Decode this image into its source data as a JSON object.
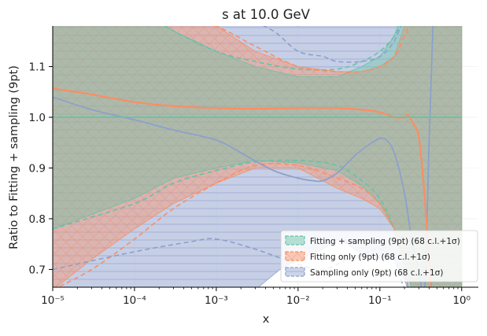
{
  "chart_data": {
    "type": "line",
    "title": "s at 10.0 GeV",
    "xlabel": "x",
    "ylabel": "Ratio to Fitting + sampling (9pt)",
    "xscale": "log",
    "xlim": [
      1e-05,
      1.6
    ],
    "ylim": [
      0.665,
      1.18
    ],
    "x_ticks": [
      {
        "value": 1e-05,
        "label": "10⁻⁵"
      },
      {
        "value": 0.0001,
        "label": "10⁻⁴"
      },
      {
        "value": 0.001,
        "label": "10⁻³"
      },
      {
        "value": 0.01,
        "label": "10⁻²"
      },
      {
        "value": 0.1,
        "label": "10⁻¹"
      },
      {
        "value": 1,
        "label": "10⁰"
      }
    ],
    "y_ticks": [
      {
        "value": 0.7,
        "label": "0.7"
      },
      {
        "value": 0.8,
        "label": "0.8"
      },
      {
        "value": 0.9,
        "label": "0.9"
      },
      {
        "value": 1.0,
        "label": "1.0"
      },
      {
        "value": 1.1,
        "label": "1.1"
      }
    ],
    "legend_position": "lower-right",
    "series": [
      {
        "name": "Fitting + sampling (9pt) (68 c.l.+1σ)",
        "color": "#66c2a5",
        "hatch": "none",
        "central": [
          [
            1e-05,
            1.0
          ],
          [
            1,
            1.0
          ]
        ],
        "band_upper": [
          [
            1e-05,
            1.25
          ],
          [
            0.0001,
            1.22
          ],
          [
            0.0003,
            1.17
          ],
          [
            0.001,
            1.13
          ],
          [
            0.003,
            1.1
          ],
          [
            0.01,
            1.08
          ],
          [
            0.03,
            1.08
          ],
          [
            0.06,
            1.1
          ],
          [
            0.1,
            1.12
          ],
          [
            0.15,
            1.16
          ],
          [
            0.2,
            1.22
          ],
          [
            1,
            1.25
          ]
        ],
        "band_lower": [
          [
            1e-05,
            0.78
          ],
          [
            0.0001,
            0.84
          ],
          [
            0.0003,
            0.88
          ],
          [
            0.001,
            0.9
          ],
          [
            0.003,
            0.915
          ],
          [
            0.01,
            0.91
          ],
          [
            0.03,
            0.895
          ],
          [
            0.06,
            0.865
          ],
          [
            0.1,
            0.83
          ],
          [
            0.15,
            0.78
          ],
          [
            0.2,
            0.72
          ],
          [
            0.3,
            0.6
          ],
          [
            1,
            0.6
          ]
        ],
        "upper_dashed": [
          [
            1e-05,
            1.25
          ],
          [
            0.0001,
            1.21
          ],
          [
            0.0003,
            1.17
          ],
          [
            0.001,
            1.13
          ],
          [
            0.003,
            1.11
          ],
          [
            0.01,
            1.095
          ],
          [
            0.03,
            1.095
          ],
          [
            0.06,
            1.11
          ],
          [
            0.1,
            1.13
          ],
          [
            0.15,
            1.16
          ],
          [
            0.2,
            1.2
          ]
        ],
        "lower_dashed": [
          [
            1e-05,
            0.78
          ],
          [
            0.0001,
            0.83
          ],
          [
            0.0003,
            0.87
          ],
          [
            0.001,
            0.895
          ],
          [
            0.003,
            0.912
          ],
          [
            0.01,
            0.915
          ],
          [
            0.03,
            0.905
          ],
          [
            0.06,
            0.875
          ],
          [
            0.1,
            0.84
          ],
          [
            0.15,
            0.78
          ],
          [
            0.2,
            0.7
          ],
          [
            0.25,
            0.62
          ]
        ]
      },
      {
        "name": "Fitting only (9pt) (68 c.l.+1σ)",
        "color": "#fc8d62",
        "hatch": "cross",
        "central": [
          [
            1e-05,
            1.057
          ],
          [
            3e-05,
            1.045
          ],
          [
            0.0001,
            1.03
          ],
          [
            0.0003,
            1.022
          ],
          [
            0.001,
            1.018
          ],
          [
            0.003,
            1.017
          ],
          [
            0.01,
            1.018
          ],
          [
            0.03,
            1.018
          ],
          [
            0.06,
            1.015
          ],
          [
            0.1,
            1.01
          ],
          [
            0.15,
            1.0
          ],
          [
            0.2,
            1.0
          ],
          [
            0.22,
            1.005
          ],
          [
            0.25,
            0.99
          ],
          [
            0.3,
            0.96
          ],
          [
            0.35,
            0.85
          ],
          [
            0.4,
            0.72
          ],
          [
            0.45,
            0.62
          ]
        ],
        "band_upper": [
          [
            1e-05,
            1.3
          ],
          [
            0.0001,
            1.25
          ],
          [
            0.001,
            1.18
          ],
          [
            0.003,
            1.13
          ],
          [
            0.01,
            1.1
          ],
          [
            0.03,
            1.09
          ],
          [
            0.06,
            1.09
          ],
          [
            0.1,
            1.1
          ],
          [
            0.15,
            1.12
          ],
          [
            0.2,
            1.18
          ],
          [
            1,
            1.3
          ]
        ],
        "band_lower": [
          [
            1e-05,
            0.66
          ],
          [
            3e-05,
            0.72
          ],
          [
            0.0001,
            0.78
          ],
          [
            0.0003,
            0.83
          ],
          [
            0.001,
            0.87
          ],
          [
            0.003,
            0.9
          ],
          [
            0.01,
            0.9
          ],
          [
            0.03,
            0.86
          ],
          [
            0.06,
            0.84
          ],
          [
            0.1,
            0.82
          ],
          [
            0.15,
            0.78
          ],
          [
            0.2,
            0.72
          ],
          [
            0.3,
            0.6
          ],
          [
            1,
            0.6
          ]
        ],
        "upper_dashed": [
          [
            1e-05,
            1.3
          ],
          [
            0.0001,
            1.25
          ],
          [
            0.001,
            1.18
          ],
          [
            0.003,
            1.14
          ],
          [
            0.01,
            1.1
          ],
          [
            0.03,
            1.09
          ],
          [
            0.06,
            1.09
          ],
          [
            0.1,
            1.1
          ],
          [
            0.15,
            1.12
          ],
          [
            0.2,
            1.16
          ],
          [
            0.25,
            1.2
          ]
        ],
        "lower_dashed": [
          [
            1e-05,
            0.66
          ],
          [
            3e-05,
            0.7
          ],
          [
            0.0001,
            0.76
          ],
          [
            0.0003,
            0.82
          ],
          [
            0.001,
            0.87
          ],
          [
            0.003,
            0.905
          ],
          [
            0.01,
            0.905
          ],
          [
            0.03,
            0.88
          ],
          [
            0.06,
            0.86
          ],
          [
            0.1,
            0.83
          ],
          [
            0.15,
            0.78
          ],
          [
            0.2,
            0.7
          ],
          [
            0.25,
            0.62
          ]
        ]
      },
      {
        "name": "Sampling only (9pt) (68 c.l.+1σ)",
        "color": "#8da0cb",
        "hatch": "horizontal",
        "central": [
          [
            1e-05,
            1.04
          ],
          [
            3e-05,
            1.015
          ],
          [
            0.0001,
            0.995
          ],
          [
            0.0003,
            0.975
          ],
          [
            0.001,
            0.955
          ],
          [
            0.002,
            0.93
          ],
          [
            0.005,
            0.895
          ],
          [
            0.01,
            0.88
          ],
          [
            0.015,
            0.875
          ],
          [
            0.02,
            0.875
          ],
          [
            0.03,
            0.89
          ],
          [
            0.05,
            0.925
          ],
          [
            0.08,
            0.95
          ],
          [
            0.1,
            0.958
          ],
          [
            0.12,
            0.955
          ],
          [
            0.15,
            0.93
          ],
          [
            0.2,
            0.85
          ],
          [
            0.25,
            0.75
          ],
          [
            0.3,
            0.7
          ],
          [
            0.35,
            0.65
          ],
          [
            0.4,
            0.95
          ],
          [
            0.45,
            1.2
          ]
        ],
        "band_upper": [
          [
            1e-05,
            1.3
          ],
          [
            0.0001,
            1.25
          ],
          [
            0.001,
            1.2
          ],
          [
            0.01,
            1.18
          ],
          [
            0.1,
            1.2
          ],
          [
            1,
            1.3
          ]
        ],
        "band_lower": [
          [
            1e-05,
            0.6
          ],
          [
            0.0001,
            0.6
          ],
          [
            0.001,
            0.6
          ],
          [
            0.003,
            0.66
          ],
          [
            0.006,
            0.7
          ],
          [
            0.01,
            0.72
          ],
          [
            0.02,
            0.74
          ],
          [
            0.03,
            0.76
          ],
          [
            0.04,
            0.75
          ],
          [
            0.06,
            0.73
          ],
          [
            0.1,
            0.72
          ],
          [
            0.15,
            0.72
          ],
          [
            0.2,
            0.68
          ],
          [
            0.3,
            0.6
          ],
          [
            1,
            0.6
          ]
        ],
        "upper_dashed": [
          [
            0.002,
            1.2
          ],
          [
            0.005,
            1.17
          ],
          [
            0.01,
            1.13
          ],
          [
            0.02,
            1.12
          ],
          [
            0.03,
            1.11
          ],
          [
            0.06,
            1.11
          ],
          [
            0.1,
            1.12
          ],
          [
            0.15,
            1.15
          ],
          [
            0.2,
            1.2
          ]
        ],
        "lower_dashed": [
          [
            1e-05,
            0.7
          ],
          [
            0.0001,
            0.735
          ],
          [
            0.0005,
            0.755
          ],
          [
            0.001,
            0.76
          ],
          [
            0.003,
            0.74
          ],
          [
            0.01,
            0.71
          ],
          [
            0.02,
            0.7
          ],
          [
            0.04,
            0.72
          ],
          [
            0.06,
            0.73
          ],
          [
            0.1,
            0.74
          ],
          [
            0.15,
            0.72
          ],
          [
            0.2,
            0.66
          ],
          [
            0.3,
            0.6
          ]
        ]
      }
    ]
  }
}
